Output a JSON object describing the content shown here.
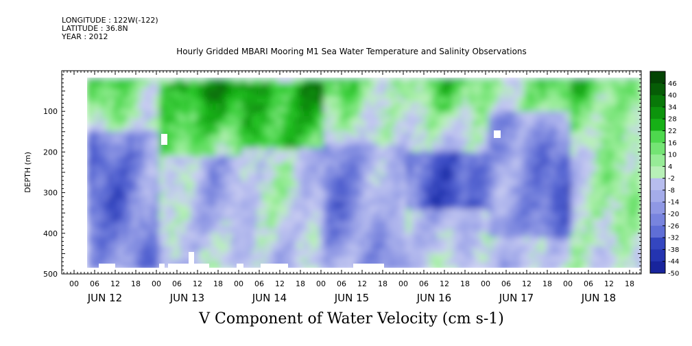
{
  "header": {
    "longitude": "LONGITUDE : 122W(-122)",
    "latitude": "LATITUDE : 36.8N",
    "year": "YEAR : 2012"
  },
  "title": "Hourly Gridded MBARI Mooring M1 Sea Water Temperature and Salinity Observations",
  "footer": "V Component of Water Velocity (cm s-1)",
  "chart_data": {
    "type": "heatmap",
    "title": "Hourly Gridded MBARI Mooring M1 Sea Water Temperature and Salinity Observations",
    "xlabel": "",
    "ylabel": "DEPTH (m)",
    "colorbar_label": "V Component of Water Velocity (cm s-1)",
    "x_hour_ticks": [
      "00",
      "06",
      "12",
      "18",
      "00",
      "06",
      "12",
      "18",
      "00",
      "06",
      "12",
      "18",
      "00",
      "06",
      "12",
      "18",
      "00",
      "06",
      "12",
      "18",
      "00",
      "06",
      "12",
      "18",
      "00",
      "06",
      "12",
      "18"
    ],
    "x_day_labels": [
      "JUN 12",
      "JUN 13",
      "JUN 14",
      "JUN 15",
      "JUN 16",
      "JUN 17",
      "JUN 18"
    ],
    "y_ticks": [
      100,
      200,
      300,
      400,
      500
    ],
    "y_range": [
      0,
      500
    ],
    "y_inverted": true,
    "data_depth_range": [
      20,
      485
    ],
    "colorbar_levels": [
      48,
      46,
      40,
      34,
      28,
      22,
      16,
      10,
      4,
      -2,
      -8,
      -14,
      -20,
      -26,
      -32,
      -38,
      -44,
      -50
    ],
    "colorbar_labels": [
      "46",
      "40",
      "34",
      "28",
      "22",
      "16",
      "10",
      "4",
      "-2",
      "-8",
      "-14",
      "-20",
      "-26",
      "-32",
      "-38",
      "-44",
      "-50"
    ],
    "colorscale": {
      "negative": [
        "#c8ccf2",
        "#b7bdee",
        "#a4acea",
        "#8f98e4",
        "#7884de",
        "#5f6ed6",
        "#4858cc",
        "#3446c0",
        "#2434b0",
        "#18249c",
        "#101a86",
        "#0a0f6c"
      ],
      "positive": [
        "#b8f0b8",
        "#97ec97",
        "#74e474",
        "#4ed84e",
        "#2cc82c",
        "#16b016",
        "#0c940c",
        "#087808",
        "#065c06",
        "#044404"
      ]
    },
    "anomalies": [
      {
        "day": "JUN 12",
        "hours": [
          0,
          24
        ],
        "depth": [
          150,
          480
        ],
        "value": -20
      },
      {
        "day": "JUN 13",
        "hours": [
          24,
          48
        ],
        "depth": [
          30,
          200
        ],
        "value": 22
      },
      {
        "day": "JUN 14",
        "hours": [
          48,
          72
        ],
        "depth": [
          30,
          180
        ],
        "value": 28
      },
      {
        "day": "JUN 15",
        "hours": [
          72,
          96
        ],
        "depth": [
          180,
          480
        ],
        "value": -14
      },
      {
        "day": "JUN 16",
        "hours": [
          96,
          120
        ],
        "depth": [
          200,
          330
        ],
        "value": -26
      },
      {
        "day": "JUN 17",
        "hours": [
          120,
          144
        ],
        "depth": [
          100,
          400
        ],
        "value": -20
      },
      {
        "day": "JUN 18",
        "hours": [
          144,
          168
        ],
        "depth": [
          20,
          480
        ],
        "value": 8
      }
    ]
  }
}
